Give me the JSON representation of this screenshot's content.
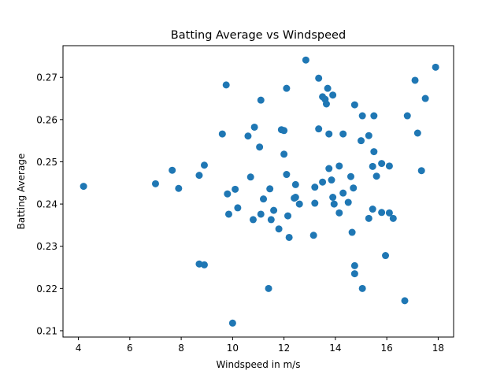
{
  "chart_data": {
    "type": "scatter",
    "title": "Batting Average vs Windspeed",
    "xlabel": "Windspeed in m/s",
    "ylabel": "Batting Average",
    "xlim": [
      3.4,
      18.6
    ],
    "ylim": [
      0.2085,
      0.2775
    ],
    "xticks": [
      4,
      6,
      8,
      10,
      12,
      14,
      16,
      18
    ],
    "yticks": [
      0.21,
      0.22,
      0.23,
      0.24,
      0.25,
      0.26,
      0.27
    ],
    "marker_color": "#1f77b4",
    "grid": false,
    "points": [
      [
        4.2,
        0.2442
      ],
      [
        7.0,
        0.2448
      ],
      [
        7.65,
        0.248
      ],
      [
        7.9,
        0.2437
      ],
      [
        8.7,
        0.2468
      ],
      [
        8.7,
        0.2258
      ],
      [
        8.9,
        0.2256
      ],
      [
        8.9,
        0.2492
      ],
      [
        9.6,
        0.2566
      ],
      [
        9.75,
        0.2682
      ],
      [
        9.8,
        0.2424
      ],
      [
        9.85,
        0.2376
      ],
      [
        10.0,
        0.2118
      ],
      [
        10.1,
        0.2435
      ],
      [
        10.2,
        0.2391
      ],
      [
        10.6,
        0.2561
      ],
      [
        10.7,
        0.2464
      ],
      [
        10.8,
        0.2363
      ],
      [
        10.85,
        0.2582
      ],
      [
        11.05,
        0.2535
      ],
      [
        11.1,
        0.2646
      ],
      [
        11.1,
        0.2376
      ],
      [
        11.2,
        0.2412
      ],
      [
        11.4,
        0.22
      ],
      [
        11.45,
        0.2436
      ],
      [
        11.5,
        0.2363
      ],
      [
        11.6,
        0.2385
      ],
      [
        11.8,
        0.2341
      ],
      [
        11.9,
        0.2576
      ],
      [
        12.0,
        0.2574
      ],
      [
        12.0,
        0.2518
      ],
      [
        12.1,
        0.247
      ],
      [
        12.1,
        0.2674
      ],
      [
        12.15,
        0.2372
      ],
      [
        12.2,
        0.2321
      ],
      [
        12.4,
        0.2414
      ],
      [
        12.45,
        0.2446
      ],
      [
        12.45,
        0.2416
      ],
      [
        12.6,
        0.24
      ],
      [
        12.85,
        0.2741
      ],
      [
        13.15,
        0.2326
      ],
      [
        13.2,
        0.244
      ],
      [
        13.2,
        0.2402
      ],
      [
        13.35,
        0.2698
      ],
      [
        13.35,
        0.2578
      ],
      [
        13.5,
        0.2452
      ],
      [
        13.5,
        0.2654
      ],
      [
        13.6,
        0.2648
      ],
      [
        13.65,
        0.2637
      ],
      [
        13.7,
        0.2674
      ],
      [
        13.75,
        0.2484
      ],
      [
        13.75,
        0.2566
      ],
      [
        13.85,
        0.2457
      ],
      [
        13.9,
        0.2658
      ],
      [
        13.9,
        0.2416
      ],
      [
        13.95,
        0.24
      ],
      [
        14.15,
        0.2379
      ],
      [
        14.15,
        0.249
      ],
      [
        14.3,
        0.2566
      ],
      [
        14.3,
        0.2426
      ],
      [
        14.5,
        0.2404
      ],
      [
        14.6,
        0.2465
      ],
      [
        14.65,
        0.2333
      ],
      [
        14.7,
        0.2438
      ],
      [
        14.75,
        0.2635
      ],
      [
        14.75,
        0.2254
      ],
      [
        14.75,
        0.2235
      ],
      [
        15.0,
        0.255
      ],
      [
        15.05,
        0.2609
      ],
      [
        15.05,
        0.22
      ],
      [
        15.3,
        0.2562
      ],
      [
        15.3,
        0.2366
      ],
      [
        15.45,
        0.2388
      ],
      [
        15.45,
        0.2489
      ],
      [
        15.5,
        0.2524
      ],
      [
        15.5,
        0.2609
      ],
      [
        15.6,
        0.2466
      ],
      [
        15.8,
        0.2496
      ],
      [
        15.8,
        0.238
      ],
      [
        15.95,
        0.2278
      ],
      [
        16.1,
        0.249
      ],
      [
        16.1,
        0.2379
      ],
      [
        16.25,
        0.2366
      ],
      [
        16.7,
        0.2171
      ],
      [
        16.8,
        0.2609
      ],
      [
        17.1,
        0.2693
      ],
      [
        17.2,
        0.2568
      ],
      [
        17.35,
        0.2479
      ],
      [
        17.5,
        0.265
      ],
      [
        17.9,
        0.2724
      ]
    ]
  }
}
